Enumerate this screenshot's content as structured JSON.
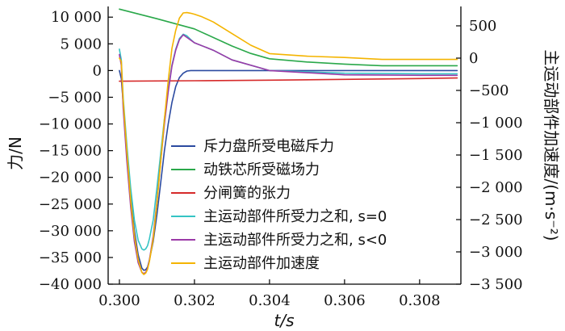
{
  "chart_data": {
    "type": "line",
    "xlabel": "t/s",
    "ylabel_left": "力/N",
    "ylabel_right": "主运动部件加速度/(m·s⁻²)",
    "xlim": [
      0.2997,
      0.3091
    ],
    "ylim_left": [
      -40000,
      12000
    ],
    "ylim_right": [
      -3500,
      800
    ],
    "x_ticks": [
      0.3,
      0.302,
      0.304,
      0.306,
      0.308
    ],
    "x_tick_labels": [
      "0.300",
      "0.302",
      "0.304",
      "0.306",
      "0.308"
    ],
    "y_left_ticks": [
      10000,
      5000,
      0,
      -5000,
      -10000,
      -15000,
      -20000,
      -25000,
      -30000,
      -35000,
      -40000
    ],
    "y_left_tick_labels": [
      "10 000",
      "5 000",
      "0",
      "−5 000",
      "−10 000",
      "−15 000",
      "−20 000",
      "−25 000",
      "−30 000",
      "−35 000",
      "−40 000"
    ],
    "y_right_ticks": [
      500,
      0,
      -500,
      -1000,
      -1500,
      -2000,
      -2500,
      -3000,
      -3500
    ],
    "y_right_tick_labels": [
      "500",
      "0",
      "−500",
      "−1 000",
      "−1 500",
      "−2 000",
      "−2 500",
      "−3 000",
      "−3 500"
    ],
    "legend_placement": "lower-right",
    "grid": false,
    "series": [
      {
        "name": "斥力盘所受电磁斥力",
        "color": "#2b4aa0",
        "axis": "left",
        "x": [
          0.3,
          0.30005,
          0.3001,
          0.3002,
          0.3003,
          0.3004,
          0.3005,
          0.3006,
          0.30065,
          0.3007,
          0.30075,
          0.3008,
          0.3009,
          0.301,
          0.3011,
          0.3012,
          0.3013,
          0.3014,
          0.3015,
          0.3016,
          0.3017,
          0.3018,
          0.3019,
          0.302,
          0.3022,
          0.303,
          0.305,
          0.307,
          0.309
        ],
        "y": [
          0,
          -1500,
          -6000,
          -15000,
          -23500,
          -30000,
          -34500,
          -37000,
          -37400,
          -37300,
          -36800,
          -35500,
          -32000,
          -27000,
          -21000,
          -15000,
          -10000,
          -6000,
          -3000,
          -1300,
          -500,
          -100,
          0,
          0,
          0,
          0,
          0,
          0,
          0
        ]
      },
      {
        "name": "动铁芯所受磁场力",
        "color": "#2aa84a",
        "axis": "left",
        "x": [
          0.3,
          0.301,
          0.302,
          0.303,
          0.3035,
          0.304,
          0.305,
          0.306,
          0.307,
          0.308,
          0.309
        ],
        "y": [
          11500,
          9700,
          7800,
          4600,
          3200,
          2200,
          1600,
          1200,
          900,
          900,
          900
        ]
      },
      {
        "name": "分闸簧的张力",
        "color": "#d62a2a",
        "axis": "left",
        "x": [
          0.3,
          0.302,
          0.304,
          0.306,
          0.308,
          0.309
        ],
        "y": [
          -2000,
          -1900,
          -1800,
          -1650,
          -1500,
          -1400
        ]
      },
      {
        "name": "主运动部件所受力之和, s=0",
        "color": "#35c4c4",
        "axis": "left",
        "x": [
          0.3,
          0.30005,
          0.3001,
          0.3002,
          0.3003,
          0.3004,
          0.3005,
          0.3006,
          0.30065,
          0.3007,
          0.30075,
          0.3008,
          0.3009,
          0.301,
          0.3011,
          0.3012,
          0.3013,
          0.3014,
          0.3015,
          0.3016,
          0.3017,
          0.3018,
          0.3019,
          0.302,
          0.3025,
          0.303,
          0.304,
          0.306,
          0.308,
          0.309
        ],
        "y": [
          4000,
          2000,
          -5000,
          -14000,
          -22000,
          -28000,
          -31800,
          -33400,
          -33600,
          -33400,
          -32800,
          -31500,
          -28000,
          -22000,
          -15500,
          -9000,
          -3500,
          1000,
          4000,
          6000,
          6800,
          6500,
          5800,
          5200,
          3800,
          2000,
          0,
          -500,
          -600,
          -600
        ]
      },
      {
        "name": "主运动部件所受力之和, s<0",
        "color": "#9b3aa8",
        "axis": "left",
        "x": [
          0.3,
          0.30005,
          0.3001,
          0.3002,
          0.3003,
          0.3004,
          0.3005,
          0.3006,
          0.30065,
          0.3007,
          0.30075,
          0.3008,
          0.3009,
          0.301,
          0.3011,
          0.3012,
          0.3013,
          0.3014,
          0.3015,
          0.3016,
          0.3017,
          0.3018,
          0.3019,
          0.302,
          0.3025,
          0.303,
          0.304,
          0.306,
          0.308,
          0.309
        ],
        "y": [
          3000,
          1000,
          -7000,
          -17000,
          -25500,
          -32000,
          -36000,
          -37800,
          -38000,
          -37800,
          -37000,
          -35500,
          -31000,
          -24500,
          -17000,
          -10000,
          -4000,
          800,
          3800,
          5800,
          6700,
          6200,
          5700,
          5200,
          3800,
          2000,
          0,
          -800,
          -900,
          -900
        ]
      },
      {
        "name": "主运动部件加速度",
        "color": "#f4b400",
        "axis": "right",
        "x": [
          0.3,
          0.30005,
          0.3001,
          0.3002,
          0.3003,
          0.3004,
          0.3005,
          0.3006,
          0.30065,
          0.3007,
          0.30075,
          0.3008,
          0.3009,
          0.301,
          0.3011,
          0.3012,
          0.3013,
          0.3014,
          0.3015,
          0.3016,
          0.3017,
          0.3018,
          0.3019,
          0.302,
          0.3022,
          0.3025,
          0.303,
          0.3035,
          0.304,
          0.305,
          0.306,
          0.307,
          0.308,
          0.309
        ],
        "y": [
          0,
          -50,
          -650,
          -1450,
          -2200,
          -2750,
          -3120,
          -3320,
          -3350,
          -3330,
          -3270,
          -3150,
          -2800,
          -2250,
          -1600,
          -950,
          -350,
          150,
          430,
          620,
          700,
          705,
          695,
          680,
          640,
          560,
          380,
          200,
          70,
          30,
          10,
          -20,
          -20,
          -20
        ]
      }
    ]
  }
}
